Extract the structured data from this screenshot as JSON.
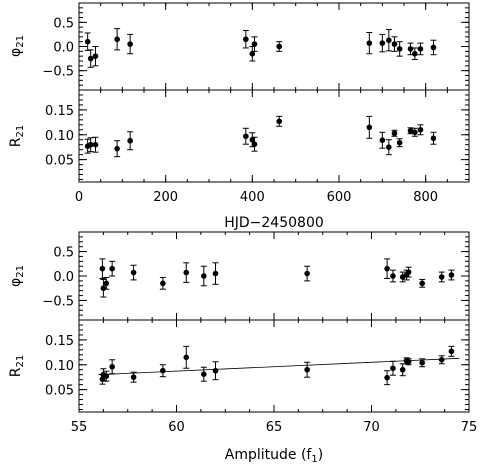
{
  "chart_data": [
    {
      "type": "scatter",
      "name": "phi21-vs-hjd",
      "ylabel": "φ21",
      "ylabel_main": "φ",
      "ylabel_sub": "21",
      "xlim": [
        0,
        900
      ],
      "ylim": [
        -0.9,
        0.9
      ],
      "xticks": [
        0,
        200,
        400,
        600,
        800
      ],
      "yticks": [
        -0.5,
        0.0,
        0.5
      ],
      "ytick_labels": [
        "−0.5",
        "0.0",
        "0.5"
      ],
      "show_xtick_labels": false,
      "points": [
        {
          "x": 20,
          "y": 0.1,
          "err": 0.18
        },
        {
          "x": 27,
          "y": -0.25,
          "err": 0.18
        },
        {
          "x": 38,
          "y": -0.2,
          "err": 0.2
        },
        {
          "x": 88,
          "y": 0.15,
          "err": 0.22
        },
        {
          "x": 118,
          "y": 0.05,
          "err": 0.2
        },
        {
          "x": 385,
          "y": 0.15,
          "err": 0.18
        },
        {
          "x": 400,
          "y": -0.15,
          "err": 0.15
        },
        {
          "x": 405,
          "y": 0.05,
          "err": 0.15
        },
        {
          "x": 462,
          "y": 0.0,
          "err": 0.1
        },
        {
          "x": 670,
          "y": 0.07,
          "err": 0.22
        },
        {
          "x": 700,
          "y": 0.07,
          "err": 0.18
        },
        {
          "x": 715,
          "y": 0.13,
          "err": 0.22
        },
        {
          "x": 728,
          "y": 0.05,
          "err": 0.15
        },
        {
          "x": 740,
          "y": -0.05,
          "err": 0.15
        },
        {
          "x": 765,
          "y": -0.05,
          "err": 0.12
        },
        {
          "x": 775,
          "y": -0.15,
          "err": 0.12
        },
        {
          "x": 788,
          "y": -0.05,
          "err": 0.12
        },
        {
          "x": 818,
          "y": -0.02,
          "err": 0.15
        }
      ]
    },
    {
      "type": "scatter",
      "name": "r21-vs-hjd",
      "ylabel": "R21",
      "ylabel_main": "R",
      "ylabel_sub": "21",
      "xlabel": "HJD−2450800",
      "xlim": [
        0,
        900
      ],
      "ylim": [
        0.005,
        0.19
      ],
      "xticks": [
        0,
        200,
        400,
        600,
        800
      ],
      "xtick_labels": [
        "0",
        "200",
        "400",
        "600",
        "800"
      ],
      "yticks": [
        0.05,
        0.1,
        0.15
      ],
      "ytick_labels": [
        "0.05",
        "0.10",
        "0.15"
      ],
      "show_xtick_labels": true,
      "points": [
        {
          "x": 20,
          "y": 0.077,
          "err": 0.014
        },
        {
          "x": 27,
          "y": 0.08,
          "err": 0.014
        },
        {
          "x": 38,
          "y": 0.08,
          "err": 0.015
        },
        {
          "x": 88,
          "y": 0.072,
          "err": 0.016
        },
        {
          "x": 118,
          "y": 0.088,
          "err": 0.018
        },
        {
          "x": 385,
          "y": 0.097,
          "err": 0.016
        },
        {
          "x": 400,
          "y": 0.09,
          "err": 0.014
        },
        {
          "x": 405,
          "y": 0.081,
          "err": 0.014
        },
        {
          "x": 462,
          "y": 0.127,
          "err": 0.01
        },
        {
          "x": 670,
          "y": 0.115,
          "err": 0.022
        },
        {
          "x": 700,
          "y": 0.089,
          "err": 0.016
        },
        {
          "x": 715,
          "y": 0.075,
          "err": 0.015
        },
        {
          "x": 728,
          "y": 0.103,
          "err": 0.006
        },
        {
          "x": 740,
          "y": 0.084,
          "err": 0.008
        },
        {
          "x": 765,
          "y": 0.108,
          "err": 0.006
        },
        {
          "x": 775,
          "y": 0.105,
          "err": 0.008
        },
        {
          "x": 788,
          "y": 0.11,
          "err": 0.01
        },
        {
          "x": 818,
          "y": 0.093,
          "err": 0.012
        }
      ]
    },
    {
      "type": "scatter",
      "name": "phi21-vs-amplitude",
      "ylabel": "φ21",
      "ylabel_main": "φ",
      "ylabel_sub": "21",
      "xlim": [
        55,
        75
      ],
      "ylim": [
        -0.9,
        0.9
      ],
      "xticks": [
        55,
        60,
        65,
        70,
        75
      ],
      "yticks": [
        -0.5,
        0.0,
        0.5
      ],
      "ytick_labels": [
        "−0.5",
        "0.0",
        "0.5"
      ],
      "show_xtick_labels": false,
      "points": [
        {
          "x": 56.2,
          "y": 0.15,
          "err": 0.2
        },
        {
          "x": 56.25,
          "y": -0.25,
          "err": 0.18
        },
        {
          "x": 56.4,
          "y": -0.15,
          "err": 0.12
        },
        {
          "x": 56.7,
          "y": 0.15,
          "err": 0.15
        },
        {
          "x": 57.8,
          "y": 0.07,
          "err": 0.15
        },
        {
          "x": 59.3,
          "y": -0.15,
          "err": 0.12
        },
        {
          "x": 60.5,
          "y": 0.07,
          "err": 0.2
        },
        {
          "x": 61.4,
          "y": 0.0,
          "err": 0.2
        },
        {
          "x": 62.0,
          "y": 0.05,
          "err": 0.22
        },
        {
          "x": 66.7,
          "y": 0.05,
          "err": 0.15
        },
        {
          "x": 70.8,
          "y": 0.15,
          "err": 0.2
        },
        {
          "x": 71.1,
          "y": 0.0,
          "err": 0.12
        },
        {
          "x": 71.6,
          "y": -0.02,
          "err": 0.1
        },
        {
          "x": 71.8,
          "y": 0.02,
          "err": 0.1
        },
        {
          "x": 71.9,
          "y": 0.08,
          "err": 0.1
        },
        {
          "x": 72.6,
          "y": -0.15,
          "err": 0.08
        },
        {
          "x": 73.6,
          "y": -0.02,
          "err": 0.1
        },
        {
          "x": 74.1,
          "y": 0.02,
          "err": 0.1
        }
      ]
    },
    {
      "type": "scatter",
      "name": "r21-vs-amplitude",
      "ylabel": "R21",
      "ylabel_main": "R",
      "ylabel_sub": "21",
      "xlabel": "Amplitude (f1)",
      "xlabel_main": "Amplitude (f",
      "xlabel_sub": "1",
      "xlabel_tail": ")",
      "xlim": [
        55,
        75
      ],
      "ylim": [
        0.005,
        0.19
      ],
      "xticks": [
        55,
        60,
        65,
        70,
        75
      ],
      "xtick_labels": [
        "55",
        "60",
        "65",
        "70",
        "75"
      ],
      "yticks": [
        0.05,
        0.1,
        0.15
      ],
      "ytick_labels": [
        "0.05",
        "0.10",
        "0.15"
      ],
      "show_xtick_labels": true,
      "fit_line": {
        "x": [
          56.0,
          74.5
        ],
        "y": [
          0.08,
          0.113
        ]
      },
      "points": [
        {
          "x": 56.2,
          "y": 0.071,
          "err": 0.01
        },
        {
          "x": 56.25,
          "y": 0.08,
          "err": 0.012
        },
        {
          "x": 56.4,
          "y": 0.077,
          "err": 0.01
        },
        {
          "x": 56.7,
          "y": 0.096,
          "err": 0.014
        },
        {
          "x": 57.8,
          "y": 0.075,
          "err": 0.01
        },
        {
          "x": 59.3,
          "y": 0.088,
          "err": 0.012
        },
        {
          "x": 60.5,
          "y": 0.115,
          "err": 0.022
        },
        {
          "x": 61.4,
          "y": 0.081,
          "err": 0.014
        },
        {
          "x": 62.0,
          "y": 0.088,
          "err": 0.018
        },
        {
          "x": 66.7,
          "y": 0.09,
          "err": 0.015
        },
        {
          "x": 70.8,
          "y": 0.074,
          "err": 0.014
        },
        {
          "x": 71.1,
          "y": 0.093,
          "err": 0.014
        },
        {
          "x": 71.6,
          "y": 0.09,
          "err": 0.012
        },
        {
          "x": 71.8,
          "y": 0.108,
          "err": 0.006
        },
        {
          "x": 71.9,
          "y": 0.106,
          "err": 0.006
        },
        {
          "x": 72.6,
          "y": 0.104,
          "err": 0.008
        },
        {
          "x": 73.6,
          "y": 0.11,
          "err": 0.008
        },
        {
          "x": 74.1,
          "y": 0.127,
          "err": 0.01
        }
      ]
    }
  ]
}
